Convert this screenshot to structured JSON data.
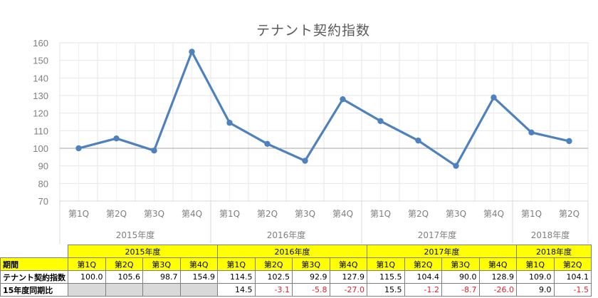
{
  "chart_data": {
    "type": "line",
    "title": "テナント契約指数",
    "xlabel": "",
    "ylabel": "",
    "ylim": [
      70,
      160
    ],
    "yticks": [
      70,
      80,
      90,
      100,
      110,
      120,
      130,
      140,
      150,
      160
    ],
    "grid": true,
    "reference_line": 100,
    "legend": null,
    "line_color": "#4f81bd",
    "x_groups": [
      {
        "label": "2015年度",
        "quarters": [
          "第1Q",
          "第2Q",
          "第3Q",
          "第4Q"
        ]
      },
      {
        "label": "2016年度",
        "quarters": [
          "第1Q",
          "第2Q",
          "第3Q",
          "第4Q"
        ]
      },
      {
        "label": "2017年度",
        "quarters": [
          "第1Q",
          "第2Q",
          "第3Q",
          "第4Q"
        ]
      },
      {
        "label": "2018年度",
        "quarters": [
          "第1Q",
          "第2Q"
        ]
      }
    ],
    "categories": [
      "2015 第1Q",
      "2015 第2Q",
      "2015 第3Q",
      "2015 第4Q",
      "2016 第1Q",
      "2016 第2Q",
      "2016 第3Q",
      "2016 第4Q",
      "2017 第1Q",
      "2017 第2Q",
      "2017 第3Q",
      "2017 第4Q",
      "2018 第1Q",
      "2018 第2Q"
    ],
    "series": [
      {
        "name": "テナント契約指数",
        "values": [
          100.0,
          105.6,
          98.7,
          154.9,
          114.5,
          102.5,
          92.9,
          127.9,
          115.5,
          104.4,
          90.0,
          128.9,
          109.0,
          104.1
        ]
      }
    ]
  },
  "table": {
    "period_label": "期間",
    "row1_label": "テナント契約指数",
    "row2_label": "15年度同期比",
    "years": [
      "2015年度",
      "2016年度",
      "2017年度",
      "2018年度"
    ],
    "quarters": [
      "第1Q",
      "第2Q",
      "第3Q",
      "第4Q",
      "第1Q",
      "第2Q",
      "第3Q",
      "第4Q",
      "第1Q",
      "第2Q",
      "第3Q",
      "第4Q",
      "第1Q",
      "第2Q"
    ],
    "index_values": [
      "100.0",
      "105.6",
      "98.7",
      "154.9",
      "114.5",
      "102.5",
      "92.9",
      "127.9",
      "115.5",
      "104.4",
      "90.0",
      "128.9",
      "109.0",
      "104.1"
    ],
    "yoy_values": [
      "",
      "",
      "",
      "",
      "14.5",
      "-3.1",
      "-5.8",
      "-27.0",
      "15.5",
      "-1.2",
      "-8.7",
      "-26.0",
      "9.0",
      "-1.5"
    ]
  }
}
